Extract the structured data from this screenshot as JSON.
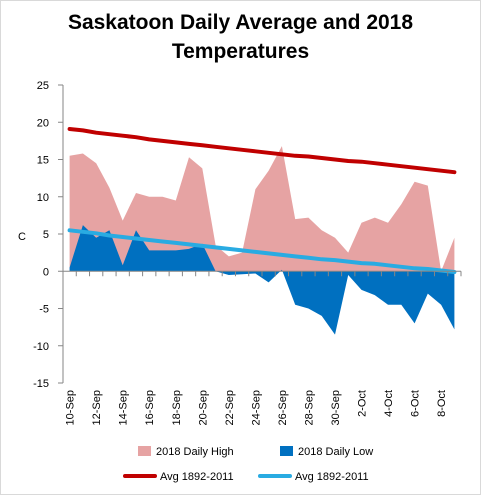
{
  "chart_data": {
    "type": "area",
    "title_lines": [
      "Saskatoon Daily Average and 2018",
      "Temperatures"
    ],
    "xlabel": "",
    "ylabel": "C",
    "ylim": [
      -15,
      25
    ],
    "yticks": [
      -15,
      -10,
      -5,
      0,
      5,
      10,
      15,
      20,
      25
    ],
    "grid": false,
    "legend_position": "bottom",
    "categories": [
      "10-Sep",
      "11-Sep",
      "12-Sep",
      "13-Sep",
      "14-Sep",
      "15-Sep",
      "16-Sep",
      "17-Sep",
      "18-Sep",
      "19-Sep",
      "20-Sep",
      "21-Sep",
      "22-Sep",
      "23-Sep",
      "24-Sep",
      "25-Sep",
      "26-Sep",
      "27-Sep",
      "28-Sep",
      "29-Sep",
      "30-Sep",
      "1-Oct",
      "2-Oct",
      "3-Oct",
      "4-Oct",
      "5-Oct",
      "6-Oct",
      "7-Oct",
      "8-Oct",
      "9-Oct"
    ],
    "tick_labels": [
      "10-Sep",
      "12-Sep",
      "14-Sep",
      "16-Sep",
      "18-Sep",
      "20-Sep",
      "22-Sep",
      "24-Sep",
      "26-Sep",
      "28-Sep",
      "30-Sep",
      "2-Oct",
      "4-Oct",
      "6-Oct",
      "8-Oct"
    ],
    "series": [
      {
        "name": "2018 Daily High",
        "kind": "area",
        "color": "#e6a3a3",
        "values": [
          15.5,
          15.8,
          14.5,
          11.2,
          6.8,
          10.5,
          10.0,
          10.0,
          9.5,
          15.3,
          13.8,
          3.5,
          2.0,
          2.5,
          11.0,
          13.5,
          16.8,
          7.0,
          7.2,
          5.5,
          4.5,
          2.5,
          6.5,
          7.2,
          6.5,
          9.0,
          12.0,
          11.5,
          0.0,
          4.5
        ]
      },
      {
        "name": "2018 Daily Low",
        "kind": "area",
        "color": "#0070c0",
        "values": [
          0.5,
          6.2,
          4.5,
          5.5,
          0.8,
          5.5,
          2.8,
          2.8,
          2.8,
          3.0,
          3.7,
          0.0,
          -0.5,
          -0.4,
          -0.3,
          -1.5,
          0.2,
          -4.5,
          -5.0,
          -6.0,
          -8.5,
          -0.5,
          -2.5,
          -3.2,
          -4.5,
          -4.5,
          -7.0,
          -3.0,
          -4.5,
          -7.8
        ]
      },
      {
        "name": "Avg 1892-2011",
        "kind": "line",
        "color": "#c00000",
        "values": [
          19.1,
          18.9,
          18.6,
          18.4,
          18.2,
          18.0,
          17.7,
          17.5,
          17.3,
          17.1,
          16.9,
          16.7,
          16.5,
          16.3,
          16.1,
          15.9,
          15.7,
          15.5,
          15.4,
          15.2,
          15.0,
          14.8,
          14.7,
          14.5,
          14.3,
          14.1,
          13.9,
          13.7,
          13.5,
          13.3
        ]
      },
      {
        "name": "Avg 1892-2011",
        "kind": "line",
        "color": "#29abe2",
        "values": [
          5.5,
          5.3,
          5.1,
          4.8,
          4.6,
          4.4,
          4.2,
          4.0,
          3.8,
          3.6,
          3.4,
          3.2,
          3.0,
          2.8,
          2.6,
          2.4,
          2.2,
          2.0,
          1.8,
          1.6,
          1.5,
          1.3,
          1.1,
          1.0,
          0.8,
          0.6,
          0.4,
          0.3,
          0.1,
          -0.1
        ]
      }
    ]
  }
}
